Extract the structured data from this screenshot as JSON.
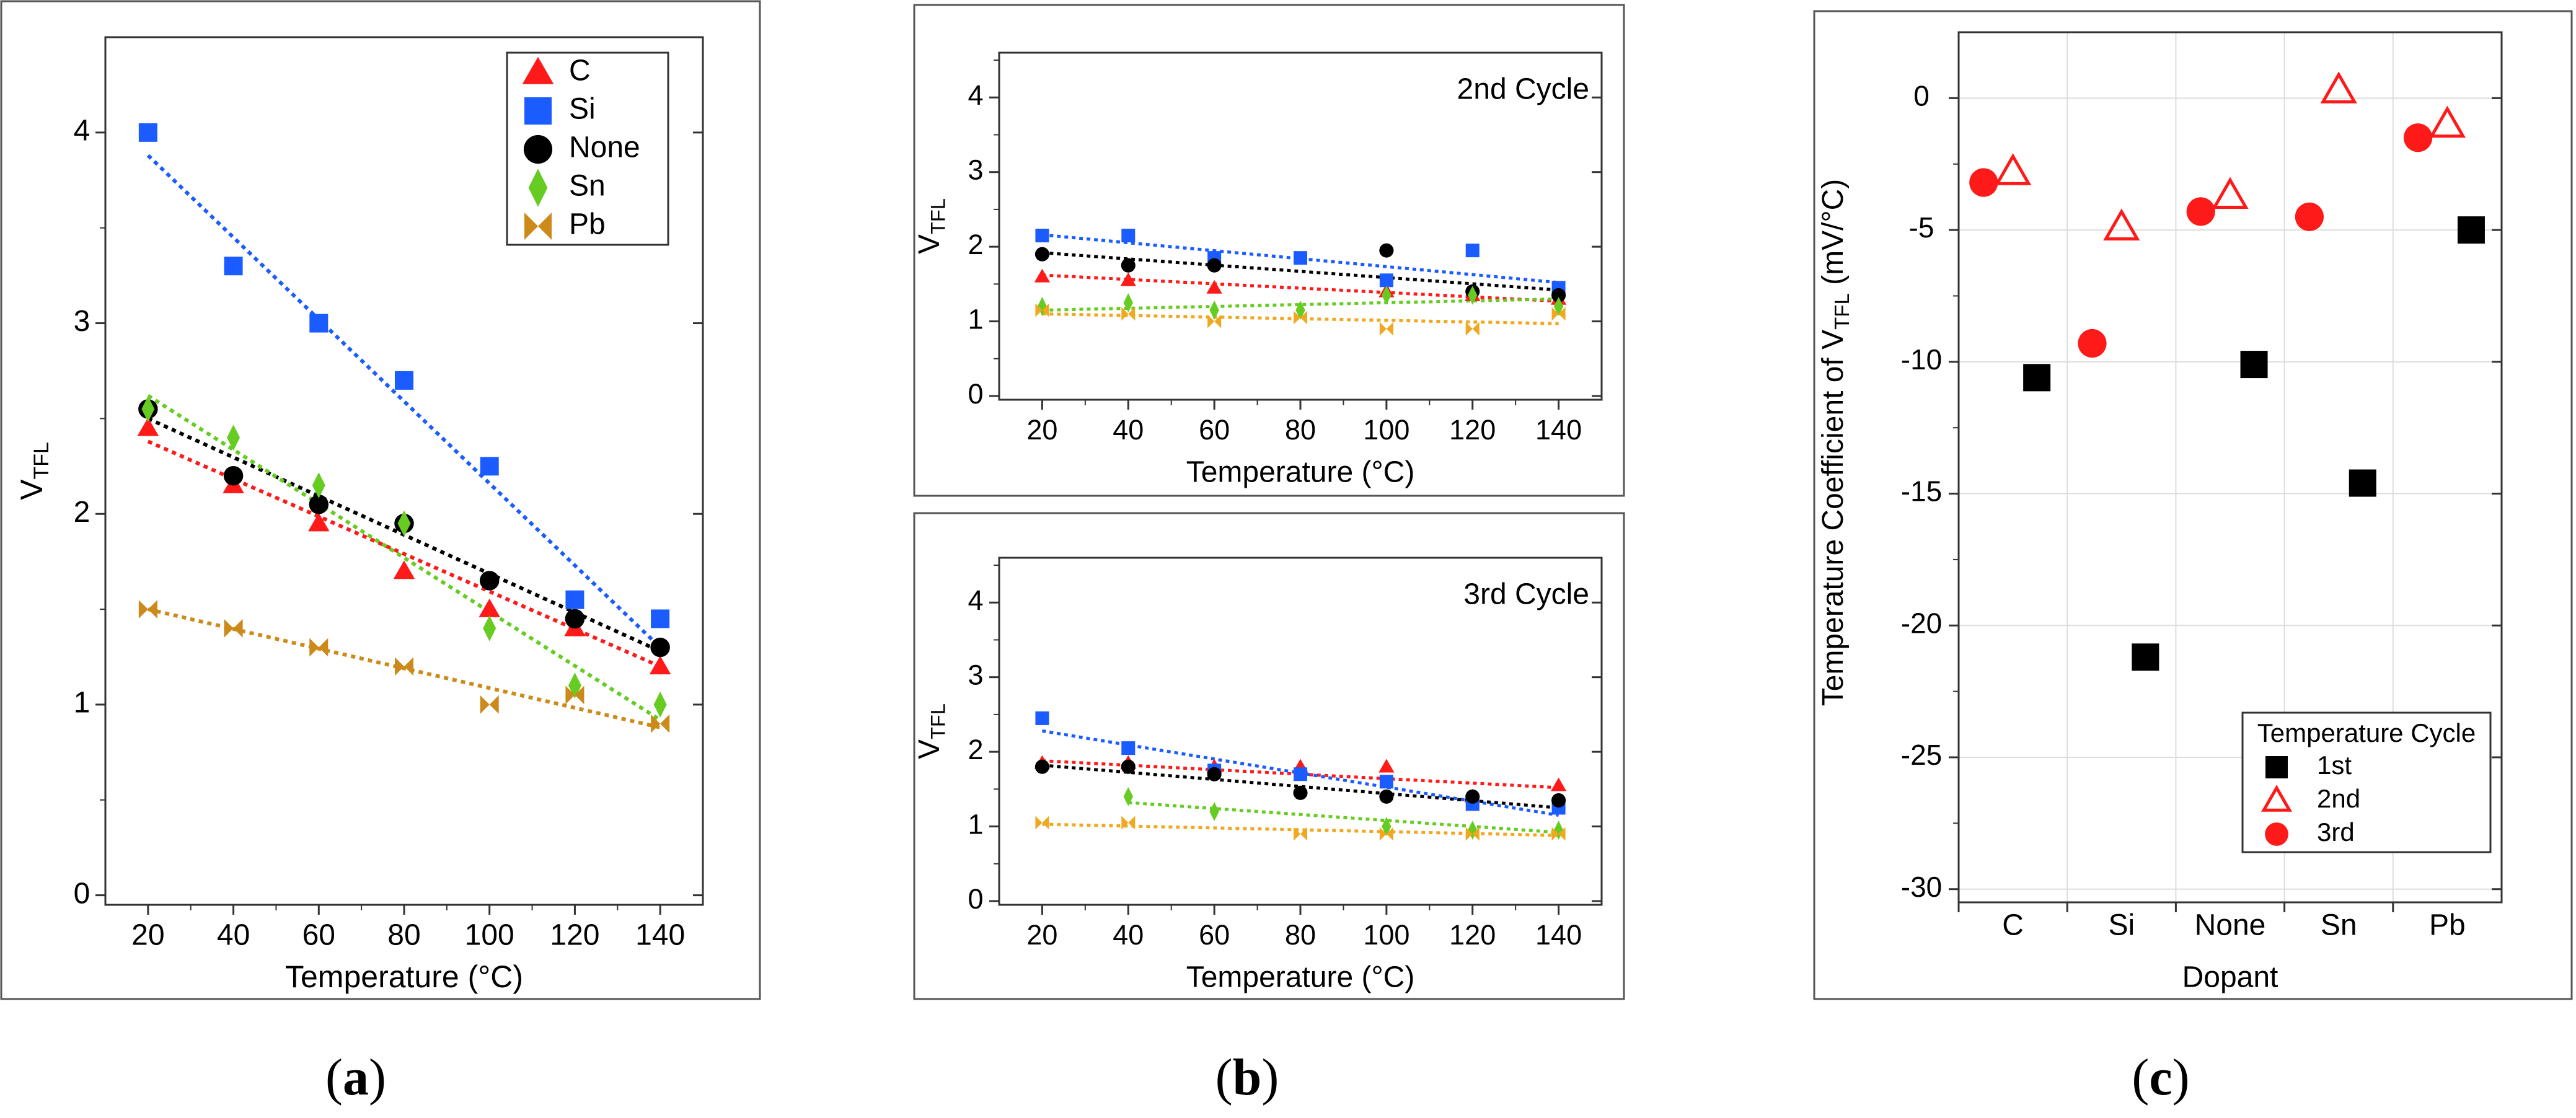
{
  "captions": {
    "a": "a",
    "b": "b",
    "c": "c"
  },
  "chart_data": [
    {
      "id": "a",
      "type": "scatter",
      "title": "",
      "xlabel": "Temperature (°C)",
      "ylabel": "V",
      "ylabel_sub": "TFL",
      "xlim": [
        10,
        150
      ],
      "ylim": [
        -0.05,
        4.5
      ],
      "xticks": [
        "20",
        "40",
        "60",
        "80",
        "100",
        "120",
        "140"
      ],
      "yticks": [
        "0",
        "1",
        "2",
        "3",
        "4"
      ],
      "legend": "top-right",
      "series": [
        {
          "name": "C",
          "marker": "triangle",
          "color": "#ff1a1a",
          "x": [
            20,
            40,
            60,
            80,
            100,
            120,
            140
          ],
          "values": [
            2.45,
            2.15,
            1.95,
            1.7,
            1.5,
            1.4,
            1.2
          ],
          "fit": [
            2.38,
            1.2
          ]
        },
        {
          "name": "Si",
          "marker": "square",
          "color": "#1a5cff",
          "x": [
            20,
            40,
            60,
            80,
            100,
            120,
            140
          ],
          "values": [
            4.0,
            3.3,
            3.0,
            2.7,
            2.25,
            1.55,
            1.45
          ],
          "fit": [
            3.88,
            1.3
          ]
        },
        {
          "name": "None",
          "marker": "circle",
          "color": "#000000",
          "x": [
            20,
            40,
            60,
            80,
            100,
            120,
            140
          ],
          "values": [
            2.55,
            2.2,
            2.05,
            1.95,
            1.65,
            1.45,
            1.3
          ],
          "fit": [
            2.5,
            1.28
          ]
        },
        {
          "name": "Sn",
          "marker": "diamond",
          "color": "#66cc22",
          "x": [
            20,
            40,
            60,
            80,
            100,
            120,
            140
          ],
          "values": [
            2.55,
            2.4,
            2.15,
            1.95,
            1.4,
            1.1,
            1.0
          ],
          "fit": [
            2.62,
            0.92
          ]
        },
        {
          "name": "Pb",
          "marker": "bowtie",
          "color": "#cc8a1a",
          "x": [
            20,
            40,
            60,
            80,
            100,
            120,
            140
          ],
          "values": [
            1.5,
            1.4,
            1.3,
            1.2,
            1.0,
            1.05,
            0.9
          ],
          "fit": [
            1.5,
            0.88
          ]
        }
      ]
    },
    {
      "id": "b1",
      "type": "scatter",
      "title": "2nd Cycle",
      "xlabel": "Temperature (°C)",
      "ylabel": "V",
      "ylabel_sub": "TFL",
      "xlim": [
        10,
        150
      ],
      "ylim": [
        -0.05,
        4.6
      ],
      "xticks": [
        "20",
        "40",
        "60",
        "80",
        "100",
        "120",
        "140"
      ],
      "yticks": [
        "0",
        "1",
        "2",
        "3",
        "4"
      ],
      "series": [
        {
          "name": "C",
          "marker": "triangle",
          "color": "#ff1a1a",
          "x": [
            20,
            40,
            60,
            80,
            100,
            120,
            140
          ],
          "values": [
            1.6,
            1.55,
            1.45,
            null,
            1.4,
            1.35,
            1.3
          ],
          "fit": [
            1.62,
            1.27
          ]
        },
        {
          "name": "Si",
          "marker": "square",
          "color": "#1a5cff",
          "x": [
            20,
            40,
            60,
            80,
            100,
            120,
            140
          ],
          "values": [
            2.15,
            2.15,
            1.85,
            1.85,
            1.55,
            1.95,
            1.45
          ],
          "fit": [
            2.16,
            1.52
          ]
        },
        {
          "name": "None",
          "marker": "circle",
          "color": "#000000",
          "x": [
            20,
            40,
            60,
            80,
            100,
            120,
            140
          ],
          "values": [
            1.9,
            1.75,
            1.75,
            null,
            1.95,
            1.4,
            1.35
          ],
          "fit": [
            1.92,
            1.42
          ]
        },
        {
          "name": "Sn",
          "marker": "diamond",
          "color": "#66cc22",
          "x": [
            20,
            40,
            60,
            80,
            100,
            120,
            140
          ],
          "values": [
            1.2,
            1.25,
            1.15,
            1.15,
            1.35,
            1.35,
            1.2
          ],
          "fit": [
            1.15,
            1.3
          ]
        },
        {
          "name": "Pb",
          "marker": "bowtie",
          "color": "#f0a820",
          "x": [
            20,
            40,
            60,
            80,
            100,
            120,
            140
          ],
          "values": [
            1.15,
            1.1,
            1.0,
            1.05,
            0.9,
            0.9,
            1.1
          ],
          "fit": [
            1.1,
            0.97
          ]
        }
      ]
    },
    {
      "id": "b2",
      "type": "scatter",
      "title": "3rd Cycle",
      "xlabel": "Temperature (°C)",
      "ylabel": "V",
      "ylabel_sub": "TFL",
      "xlim": [
        10,
        150
      ],
      "ylim": [
        -0.05,
        4.6
      ],
      "xticks": [
        "20",
        "40",
        "60",
        "80",
        "100",
        "120",
        "140"
      ],
      "yticks": [
        "0",
        "1",
        "2",
        "3",
        "4"
      ],
      "series": [
        {
          "name": "C",
          "marker": "triangle",
          "color": "#ff1a1a",
          "x": [
            20,
            40,
            60,
            80,
            100,
            120,
            140
          ],
          "values": [
            1.85,
            1.85,
            1.8,
            1.8,
            1.8,
            1.4,
            1.55
          ],
          "fit": [
            1.88,
            1.52
          ]
        },
        {
          "name": "Si",
          "marker": "square",
          "color": "#1a5cff",
          "x": [
            20,
            40,
            60,
            80,
            100,
            120,
            140
          ],
          "values": [
            2.45,
            2.05,
            1.75,
            1.7,
            1.6,
            1.3,
            1.25
          ],
          "fit": [
            2.28,
            1.15
          ]
        },
        {
          "name": "None",
          "marker": "circle",
          "color": "#000000",
          "x": [
            20,
            40,
            60,
            80,
            100,
            120,
            140
          ],
          "values": [
            1.8,
            1.8,
            1.7,
            1.45,
            1.4,
            1.4,
            1.35
          ],
          "fit": [
            1.82,
            1.25
          ]
        },
        {
          "name": "Sn",
          "marker": "diamond",
          "color": "#66cc22",
          "x": [
            20,
            40,
            60,
            80,
            100,
            120,
            140
          ],
          "values": [
            null,
            1.4,
            1.2,
            null,
            1.0,
            0.95,
            0.95
          ],
          "fit": [
            1.32,
            0.92
          ],
          "fit_x": [
            40,
            140
          ]
        },
        {
          "name": "Pb",
          "marker": "bowtie",
          "color": "#f0a820",
          "x": [
            20,
            40,
            60,
            80,
            100,
            120,
            140
          ],
          "values": [
            1.05,
            1.05,
            null,
            0.9,
            0.9,
            0.9,
            0.9
          ],
          "fit": [
            1.03,
            0.88
          ]
        }
      ]
    },
    {
      "id": "c",
      "type": "scatter",
      "title": "",
      "xlabel": "Dopant",
      "ylabel": "Temperature Coefficient of V",
      "ylabel_sub": "TFL",
      "ylabel_tail": " (mV/°C)",
      "categories": [
        "C",
        "Si",
        "None",
        "Sn",
        "Pb"
      ],
      "ylim": [
        -30.5,
        2.5
      ],
      "yticks": [
        "0",
        "-5",
        "-10",
        "-15",
        "-20",
        "-25",
        "-30"
      ],
      "legend": "bottom-right",
      "legend_title": "Temperature Cycle",
      "series": [
        {
          "name": "1st",
          "marker": "square",
          "color": "#000000",
          "values": [
            -10.6,
            -21.2,
            -10.1,
            -14.6,
            -5.0
          ]
        },
        {
          "name": "2nd",
          "marker": "open-triangle",
          "color": "#ff1a1a",
          "values": [
            -2.8,
            -4.9,
            -3.7,
            0.3,
            -1.0
          ]
        },
        {
          "name": "3rd",
          "marker": "circle",
          "color": "#ff1a1a",
          "values": [
            -3.2,
            -9.3,
            -4.3,
            -4.5,
            -1.5
          ]
        }
      ]
    }
  ]
}
